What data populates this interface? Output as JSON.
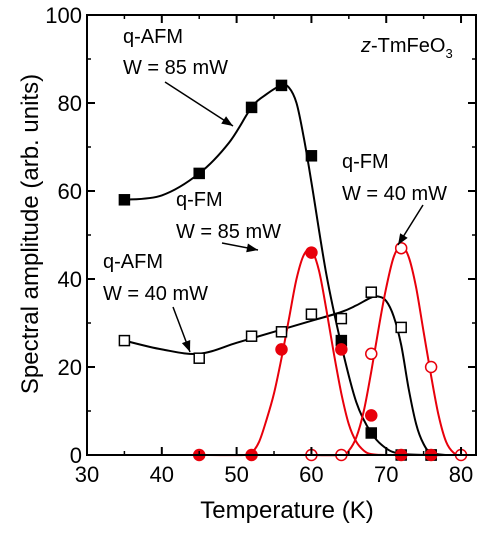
{
  "chart_data": {
    "type": "scatter",
    "xlabel": "Temperature (K)",
    "ylabel": "Spectral amplitude (arb. units)",
    "xlim": [
      30,
      82
    ],
    "ylim": [
      0,
      100
    ],
    "xticks": [
      30,
      40,
      50,
      60,
      70,
      80
    ],
    "yticks": [
      0,
      20,
      40,
      60,
      80,
      100
    ],
    "grid": false,
    "legend": "none",
    "corner_label": {
      "italic": "z",
      "rest": "-TmFeO",
      "sub": "3"
    },
    "colors": {
      "black": "#000000",
      "red": "#e8000b"
    },
    "series": [
      {
        "name": "q-AFM W = 85 mW",
        "color": "#000000",
        "marker": "square-filled",
        "x": [
          35,
          45,
          52,
          56,
          60,
          64,
          68,
          72,
          76
        ],
        "y": [
          58,
          64,
          79,
          84,
          68,
          26,
          5,
          0,
          0
        ],
        "fit": [
          [
            35,
            58
          ],
          [
            40,
            59
          ],
          [
            45,
            64
          ],
          [
            49,
            71
          ],
          [
            52,
            79
          ],
          [
            54,
            82
          ],
          [
            56,
            84
          ],
          [
            57,
            83.5
          ],
          [
            58,
            80
          ],
          [
            59,
            72
          ],
          [
            60,
            62
          ],
          [
            62,
            41
          ],
          [
            64,
            25
          ],
          [
            66,
            12
          ],
          [
            68,
            5
          ],
          [
            70,
            1.5
          ],
          [
            72,
            0.3
          ],
          [
            76,
            0
          ],
          [
            78,
            0
          ]
        ]
      },
      {
        "name": "q-AFM W = 40 mW",
        "color": "#000000",
        "marker": "square-open",
        "x": [
          35,
          45,
          52,
          56,
          60,
          64,
          68,
          72,
          76
        ],
        "y": [
          26,
          22,
          27,
          28,
          32,
          31,
          37,
          29,
          0
        ],
        "fit": [
          [
            35,
            26
          ],
          [
            40,
            24
          ],
          [
            45,
            23
          ],
          [
            50,
            25.5
          ],
          [
            55,
            28
          ],
          [
            60,
            30.5
          ],
          [
            64,
            32.5
          ],
          [
            66,
            34
          ],
          [
            68,
            35.8
          ],
          [
            69,
            36
          ],
          [
            70,
            35
          ],
          [
            71,
            31.5
          ],
          [
            72,
            25
          ],
          [
            73,
            15
          ],
          [
            74,
            7
          ],
          [
            75,
            2.5
          ],
          [
            76,
            0.5
          ],
          [
            78,
            0
          ]
        ]
      },
      {
        "name": "q-FM W = 85 mW",
        "color": "#e8000b",
        "marker": "circle-filled",
        "x": [
          45,
          52,
          56,
          60,
          64,
          68,
          72,
          76
        ],
        "y": [
          0,
          0,
          24,
          46,
          24,
          9,
          0,
          0
        ],
        "fit": [
          [
            45,
            0
          ],
          [
            51,
            0
          ],
          [
            52,
            0.5
          ],
          [
            53,
            3
          ],
          [
            54,
            8
          ],
          [
            55,
            14
          ],
          [
            56,
            22
          ],
          [
            57,
            31
          ],
          [
            58,
            40
          ],
          [
            59,
            45.5
          ],
          [
            60,
            46.5
          ],
          [
            61,
            42
          ],
          [
            62,
            33
          ],
          [
            63,
            23
          ],
          [
            64,
            14
          ],
          [
            65,
            7
          ],
          [
            66,
            3
          ],
          [
            67,
            1
          ],
          [
            68,
            0.2
          ],
          [
            70,
            0
          ],
          [
            76,
            0
          ]
        ]
      },
      {
        "name": "q-FM W = 40 mW",
        "color": "#e8000b",
        "marker": "circle-open",
        "x": [
          60,
          64,
          68,
          72,
          76,
          80
        ],
        "y": [
          0,
          0,
          23,
          47,
          20,
          0
        ],
        "fit": [
          [
            60,
            0
          ],
          [
            64,
            0
          ],
          [
            65,
            1
          ],
          [
            66,
            4
          ],
          [
            67,
            10
          ],
          [
            68,
            19
          ],
          [
            69,
            29
          ],
          [
            70,
            38
          ],
          [
            71,
            45
          ],
          [
            72,
            47.5
          ],
          [
            73,
            45
          ],
          [
            74,
            38
          ],
          [
            75,
            28
          ],
          [
            76,
            18
          ],
          [
            77,
            9
          ],
          [
            78,
            3
          ],
          [
            79,
            0.5
          ],
          [
            80,
            0
          ]
        ]
      }
    ],
    "annotations": [
      {
        "id": "afm85",
        "lines": [
          "q-AFM",
          "W = 85 mW"
        ]
      },
      {
        "id": "fm85",
        "lines": [
          "q-FM",
          "W = 85 mW"
        ]
      },
      {
        "id": "afm40",
        "lines": [
          "q-AFM",
          "W = 40 mW"
        ]
      },
      {
        "id": "fm40",
        "lines": [
          "q-FM",
          "W = 40 mW"
        ]
      }
    ]
  }
}
